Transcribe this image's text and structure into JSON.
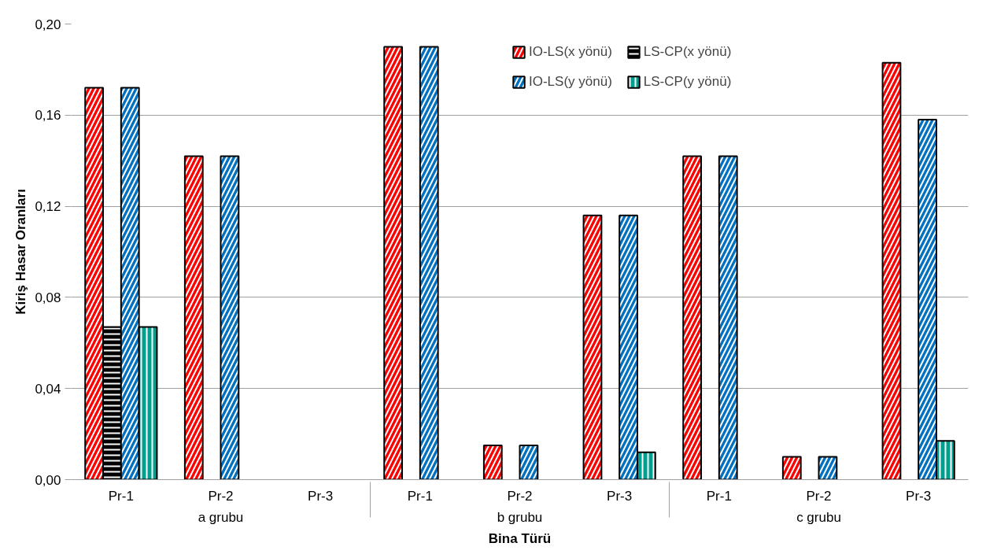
{
  "chart_data": {
    "type": "bar",
    "xlabel": "Bina Türü",
    "ylabel": "Kiriş Hasar Oranları",
    "categories": [
      "Pr-1",
      "Pr-2",
      "Pr-3",
      "Pr-1",
      "Pr-2",
      "Pr-3",
      "Pr-1",
      "Pr-2",
      "Pr-3"
    ],
    "annotations": [
      "a grubu",
      "b grubu",
      "c grubu"
    ],
    "series": [
      {
        "name": "IO-LS(x yönü)",
        "color": "#ff0000",
        "values": [
          0.172,
          0.142,
          null,
          0.19,
          0.015,
          0.116,
          0.142,
          0.01,
          0.183
        ]
      },
      {
        "name": "LS-CP(x yönü)",
        "color": "#000000",
        "values": [
          0.067,
          null,
          null,
          null,
          null,
          null,
          null,
          null,
          null
        ]
      },
      {
        "name": "IO-LS(y yönü)",
        "color": "#0070c0",
        "values": [
          0.172,
          0.142,
          null,
          0.19,
          0.015,
          0.116,
          0.142,
          0.01,
          0.158
        ]
      },
      {
        "name": "LS-CP(y yönü)",
        "color": "#00a090",
        "values": [
          0.067,
          null,
          null,
          null,
          null,
          0.012,
          null,
          null,
          0.017
        ]
      }
    ],
    "ylim": [
      0,
      0.2
    ],
    "yticks": [
      {
        "value": 0,
        "label": "0,00"
      },
      {
        "value": 0.04,
        "label": "0,04"
      },
      {
        "value": 0.08,
        "label": "0,08"
      },
      {
        "value": 0.12,
        "label": "0,12"
      },
      {
        "value": 0.16,
        "label": "0,16"
      },
      {
        "value": 0.2,
        "label": "0,20"
      }
    ],
    "grid": "y",
    "legend": "top right"
  }
}
